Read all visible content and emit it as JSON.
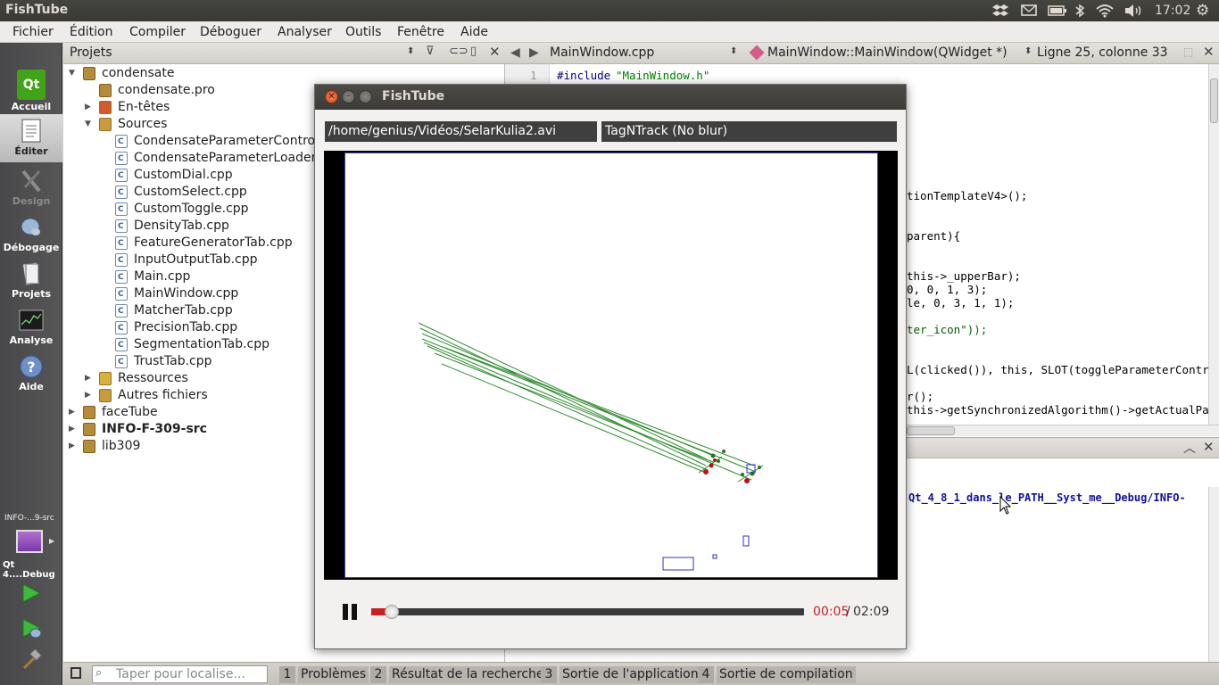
{
  "topbar": {
    "title": "FishTube",
    "time": "17:02"
  },
  "menu": [
    "Fichier",
    "Édition",
    "Compiler",
    "Déboguer",
    "Analyser",
    "Outils",
    "Fenêtre",
    "Aide"
  ],
  "modes": [
    {
      "label": "Accueil",
      "icon": "qt-logo-icon"
    },
    {
      "label": "Éditer",
      "icon": "edit-document-icon"
    },
    {
      "label": "Design",
      "icon": "design-tools-icon"
    },
    {
      "label": "Débogage",
      "icon": "debug-bug-icon"
    },
    {
      "label": "Projets",
      "icon": "projects-icon"
    },
    {
      "label": "Analyse",
      "icon": "analyze-chart-icon"
    },
    {
      "label": "Aide",
      "icon": "help-icon"
    }
  ],
  "target": {
    "project": "INFO-...9-src",
    "kit": "Qt 4....Debug"
  },
  "projects": {
    "header": "Projets",
    "tree": {
      "root": "condensate",
      "pro": "condensate.pro",
      "headers": "En-têtes",
      "sources": "Sources",
      "files": [
        "CondensateParameterControlV",
        "CondensateParameterLoader.c",
        "CustomDial.cpp",
        "CustomSelect.cpp",
        "CustomToggle.cpp",
        "DensityTab.cpp",
        "FeatureGeneratorTab.cpp",
        "InputOutputTab.cpp",
        "Main.cpp",
        "MainWindow.cpp",
        "MatcherTab.cpp",
        "PrecisionTab.cpp",
        "SegmentationTab.cpp",
        "TrustTab.cpp"
      ],
      "resources": "Ressources",
      "other": "Autres fichiers",
      "projects": [
        "faceTube",
        "INFO-F-309-src",
        "lib309"
      ]
    }
  },
  "editor": {
    "file": "MainWindow.cpp",
    "symbol": "MainWindow::MainWindow(QWidget *)",
    "position": "Ligne 25, colonne 33",
    "line1_num": "1",
    "include": "#include",
    "include_file": "\"MainWindow.h\"",
    "code_fragments": [
      "tionTemplateV4>();",
      "parent){",
      "this->_upperBar);",
      "0, 0, 1, 3);",
      "le, 0, 3, 1, 1);",
      "ter_icon\"));",
      "L(clicked()), this, SLOT(toggleParameterControl",
      "r();",
      "this->getSynchronizedAlgorithm()->getActualPara"
    ]
  },
  "output": {
    "text": "Qt_4_8_1_dans_le_PATH__Syst_me__Debug/INFO-"
  },
  "bottom": {
    "locator_placeholder": "Taper pour localise...",
    "tabs": [
      {
        "num": "1",
        "label": "Problèmes"
      },
      {
        "num": "2",
        "label": "Résultat de la recherche"
      },
      {
        "num": "3",
        "label": "Sortie de l'application"
      },
      {
        "num": "4",
        "label": "Sortie de compilation"
      }
    ]
  },
  "fishtube": {
    "title": "FishTube",
    "path": "/home/genius/Vidéos/SelarKulia2.avi",
    "algorithm": "TagNTrack (No blur)",
    "current": "00:05",
    "separator": "/",
    "total": "02:09",
    "progress": 0.04
  },
  "colors": {
    "accent_red": "#c82020",
    "track_green": "#2e8b2e",
    "track_box": "#3030c0"
  }
}
